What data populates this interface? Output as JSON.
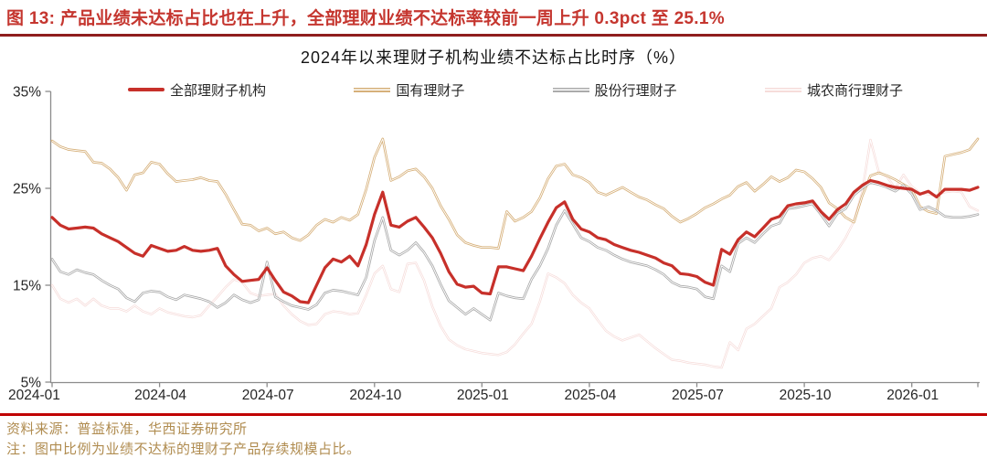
{
  "header": {
    "title": "图 13:  产品业绩未达标占比也在上升，全部理财业绩不达标率较前一周上升 0.3pct 至 25.1%"
  },
  "chart_data": {
    "type": "line",
    "title": "2024年以来理财子机构业绩不达标占比时序（%）",
    "x_unit": "week_index",
    "n_points": 113,
    "x_tick_labels": [
      "2024-01",
      "2024-04",
      "2024-07",
      "2024-10",
      "2025-01",
      "2025-04",
      "2025-07",
      "2025-10",
      "2026-01"
    ],
    "x_tick_weeks": [
      0,
      13,
      26,
      39,
      52,
      65,
      78,
      91,
      104
    ],
    "y_tick_labels": [
      "35%",
      "25%",
      "15%",
      "5%"
    ],
    "y_tick_values": [
      35,
      25,
      15,
      5
    ],
    "ylim": [
      5,
      35
    ],
    "grid": false,
    "legend_position": "top",
    "series": [
      {
        "name": "全部理财子机构",
        "color": "#C7302A",
        "width": 3.2,
        "hollow": false,
        "values": [
          22.0,
          21.2,
          20.8,
          20.9,
          21.0,
          20.9,
          20.3,
          19.9,
          19.5,
          18.9,
          18.3,
          18.0,
          19.1,
          18.8,
          18.5,
          18.6,
          19.0,
          18.6,
          18.5,
          18.6,
          18.8,
          17.0,
          16.1,
          15.4,
          15.5,
          15.6,
          16.8,
          15.5,
          14.3,
          13.9,
          13.3,
          13.2,
          15.0,
          16.8,
          17.7,
          17.4,
          18.0,
          17.0,
          19.2,
          22.3,
          24.6,
          21.2,
          21.0,
          21.6,
          22.0,
          21.0,
          19.9,
          18.3,
          16.4,
          15.1,
          14.8,
          14.9,
          14.2,
          14.1,
          16.9,
          16.9,
          16.7,
          16.5,
          18.0,
          19.8,
          21.5,
          23.0,
          23.6,
          21.8,
          20.8,
          20.5,
          19.9,
          19.7,
          19.2,
          18.9,
          18.6,
          18.4,
          18.1,
          17.8,
          17.3,
          17.0,
          16.2,
          16.1,
          15.9,
          15.3,
          15.0,
          18.7,
          18.2,
          19.7,
          20.5,
          20.0,
          20.9,
          21.8,
          22.1,
          23.2,
          23.4,
          23.5,
          23.7,
          22.6,
          21.8,
          22.8,
          23.4,
          24.6,
          25.3,
          25.8,
          25.6,
          25.3,
          25.1,
          25.0,
          24.9,
          24.4,
          24.7,
          24.1,
          24.9,
          24.9,
          24.9,
          24.8,
          25.1
        ]
      },
      {
        "name": "国有理财子",
        "color": "#D6B07A",
        "width": 2.6,
        "hollow": true,
        "values": [
          29.9,
          29.3,
          29.0,
          28.9,
          28.8,
          27.7,
          27.6,
          27.0,
          26.1,
          24.8,
          26.4,
          26.6,
          27.7,
          27.5,
          26.5,
          25.7,
          25.8,
          25.9,
          26.1,
          25.8,
          25.7,
          24.4,
          22.8,
          21.3,
          21.2,
          20.6,
          20.9,
          20.3,
          20.5,
          19.9,
          19.6,
          20.2,
          21.2,
          21.8,
          21.5,
          22.0,
          21.7,
          22.3,
          24.9,
          28.2,
          30.1,
          25.8,
          26.2,
          26.8,
          27.0,
          26.2,
          25.0,
          23.2,
          21.8,
          20.2,
          19.4,
          19.1,
          18.9,
          18.9,
          18.8,
          22.6,
          21.6,
          22.0,
          22.6,
          24.0,
          26.0,
          27.3,
          27.5,
          26.4,
          26.1,
          25.6,
          24.6,
          24.3,
          24.7,
          25.1,
          24.6,
          24.1,
          23.8,
          23.3,
          22.9,
          22.1,
          21.5,
          21.9,
          22.4,
          23.0,
          23.4,
          23.9,
          24.3,
          25.2,
          25.6,
          24.7,
          25.4,
          26.2,
          25.7,
          26.1,
          26.9,
          26.7,
          26.0,
          25.1,
          23.5,
          22.9,
          22.0,
          21.5,
          24.2,
          26.3,
          26.6,
          26.3,
          25.9,
          25.4,
          24.9,
          23.1,
          22.6,
          22.4,
          28.3,
          28.5,
          28.7,
          29.0,
          30.1
        ]
      },
      {
        "name": "股份行理财子",
        "color": "#ABABAB",
        "width": 2.6,
        "hollow": true,
        "values": [
          17.7,
          16.4,
          16.1,
          16.6,
          16.3,
          16.1,
          15.5,
          15.0,
          14.6,
          13.7,
          13.3,
          14.2,
          14.4,
          14.3,
          13.8,
          13.5,
          14.0,
          13.8,
          13.6,
          13.3,
          12.7,
          13.2,
          14.0,
          13.5,
          13.2,
          13.5,
          17.4,
          13.8,
          13.3,
          12.9,
          12.7,
          12.5,
          13.0,
          14.2,
          14.5,
          14.4,
          14.2,
          14.0,
          15.8,
          19.6,
          22.0,
          18.6,
          18.1,
          18.6,
          19.4,
          18.4,
          17.0,
          15.1,
          13.4,
          12.7,
          12.0,
          12.6,
          12.0,
          11.4,
          14.2,
          13.9,
          13.7,
          13.6,
          15.6,
          17.0,
          18.8,
          21.2,
          22.7,
          21.3,
          19.9,
          19.5,
          18.9,
          18.6,
          18.1,
          17.7,
          17.4,
          17.2,
          17.0,
          16.6,
          16.1,
          15.3,
          14.9,
          14.8,
          14.6,
          13.8,
          13.6,
          17.0,
          16.4,
          19.3,
          19.9,
          19.4,
          20.3,
          21.1,
          21.4,
          22.9,
          23.0,
          23.2,
          23.4,
          22.3,
          21.1,
          22.4,
          22.9,
          24.3,
          25.0,
          25.6,
          25.4,
          25.1,
          24.7,
          25.3,
          24.4,
          22.8,
          23.1,
          22.7,
          22.1,
          22.0,
          22.0,
          22.1,
          22.3
        ]
      },
      {
        "name": "城农商行理财子",
        "color": "#F6DCDA",
        "width": 2.4,
        "hollow": true,
        "values": [
          15.0,
          13.6,
          13.2,
          13.6,
          12.9,
          13.6,
          12.9,
          12.6,
          12.6,
          12.3,
          12.9,
          12.3,
          12.0,
          12.6,
          12.2,
          12.0,
          11.8,
          11.7,
          11.9,
          12.9,
          13.8,
          14.8,
          15.6,
          15.3,
          14.2,
          13.9,
          14.0,
          14.1,
          12.9,
          12.0,
          11.3,
          10.9,
          11.0,
          12.0,
          12.3,
          12.2,
          12.0,
          12.1,
          14.0,
          16.2,
          17.0,
          14.6,
          14.3,
          17.2,
          17.3,
          15.5,
          12.8,
          10.8,
          9.4,
          8.8,
          8.4,
          8.2,
          8.0,
          7.9,
          7.8,
          8.1,
          8.9,
          10.0,
          11.0,
          13.3,
          16.2,
          15.8,
          15.2,
          14.0,
          13.2,
          12.6,
          11.4,
          10.3,
          9.7,
          9.3,
          9.6,
          9.9,
          9.2,
          8.5,
          7.9,
          7.3,
          7.2,
          7.0,
          6.9,
          6.8,
          6.6,
          6.5,
          9.1,
          8.3,
          10.5,
          11.0,
          11.8,
          12.6,
          14.8,
          15.3,
          16.1,
          17.3,
          17.8,
          18.0,
          17.6,
          18.6,
          19.9,
          21.6,
          24.6,
          30.0,
          26.7,
          26.2,
          25.0,
          26.4,
          25.2,
          24.5,
          24.4,
          24.3,
          24.6,
          24.7,
          24.6,
          23.1,
          22.7
        ]
      }
    ]
  },
  "footer": {
    "source": "资料来源：普益标准，华西证券研究所",
    "note": "注：图中比例为业绩不达标的理财子产品存续规模占比。"
  },
  "colors": {
    "header_red": "#C5362F",
    "rule_top": "#8F1D1D",
    "rule_bottom": "#C00000",
    "footer_text": "#B08C50",
    "axis": "#8C8C8C",
    "tick_text": "#262626"
  }
}
